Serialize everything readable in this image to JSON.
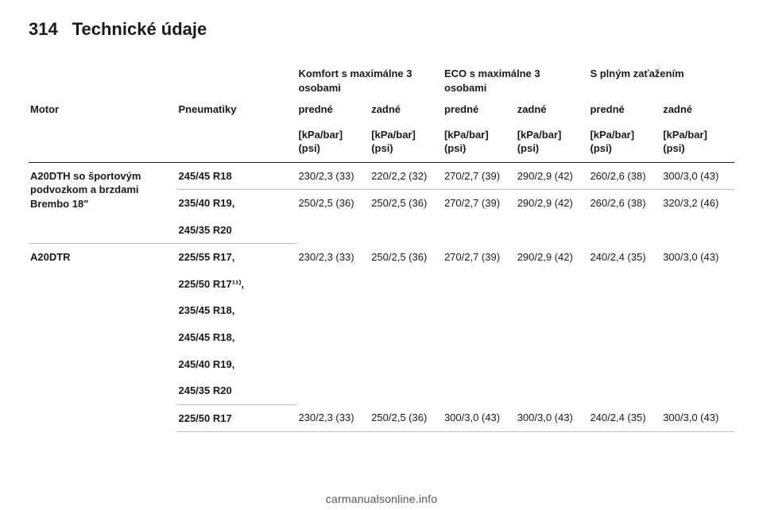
{
  "page": {
    "num": "314",
    "title": "Technické údaje"
  },
  "headers": {
    "group1": "Komfort s maximálne 3 osobami",
    "group2": "ECO s maximálne 3 osobami",
    "group3": "S plným zaťažením",
    "motor": "Motor",
    "tyres": "Pneumatiky",
    "front": "predné",
    "rear": "zadné",
    "unit": "[kPa/bar] (psi)"
  },
  "rows": [
    {
      "motor": "A20DTH so športovým podvozkom a brzdami Brembo 18\"",
      "tyre_groups": [
        {
          "tyres": [
            "245/45 R18"
          ],
          "vals": [
            "230/2,3 (33)",
            "220/2,2 (32)",
            "270/2,7 (39)",
            "290/2,9 (42)",
            "260/2,6 (38)",
            "300/3,0 (43)"
          ],
          "sep": true
        },
        {
          "tyres": [
            "235/40 R19,",
            "245/35 R20"
          ],
          "vals": [
            "250/2,5 (36)",
            "250/2,5 (36)",
            "270/2,7 (39)",
            "290/2,9 (42)",
            "260/2,6 (38)",
            "320/3,2 (46)"
          ],
          "sep": false
        }
      ]
    },
    {
      "motor": "A20DTR",
      "tyre_groups": [
        {
          "tyres": [
            "225/55 R17,",
            "225/50 R17¹¹⁾,",
            "235/45 R18,",
            "245/45 R18,",
            "245/40 R19,",
            "245/35 R20"
          ],
          "vals": [
            "230/2,3 (33)",
            "250/2,5 (36)",
            "270/2,7 (39)",
            "290/2,9 (42)",
            "240/2,4 (35)",
            "300/3,0 (43)"
          ],
          "sep": true
        },
        {
          "tyres": [
            "225/50 R17"
          ],
          "vals": [
            "230/2,3 (33)",
            "250/2,5 (36)",
            "300/3,0 (43)",
            "300/3,0 (43)",
            "240/2,4 (35)",
            "300/3,0 (43)"
          ],
          "sep": false
        }
      ]
    }
  ],
  "footer": "carmanualsonline.info"
}
